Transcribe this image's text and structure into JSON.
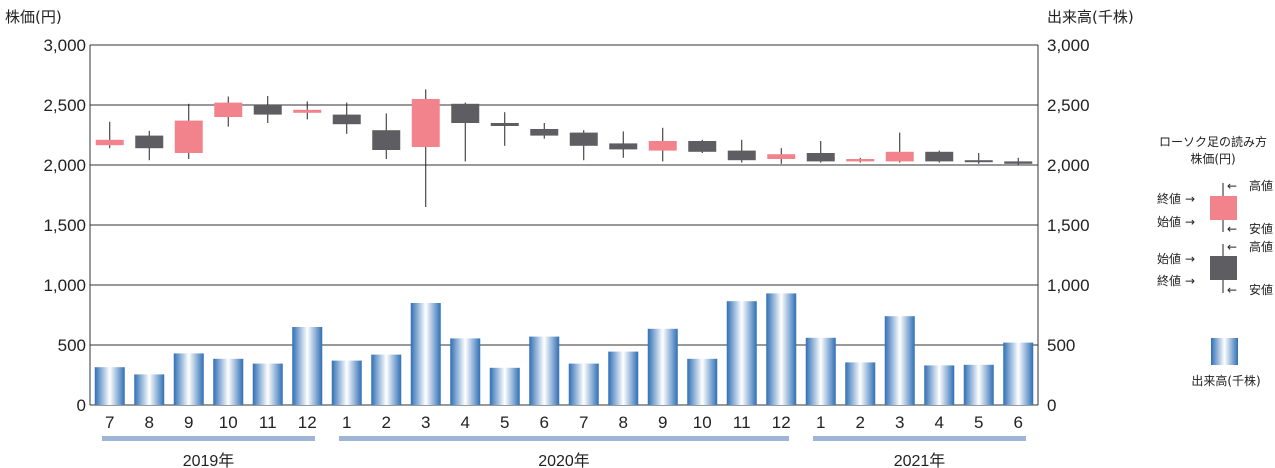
{
  "colors": {
    "up": "#f2838c",
    "down": "#5e5e62",
    "bar_edge": "#2f6fb5",
    "bar_mid": "#ffffff",
    "year_bar": "#9fb5d8",
    "grid": "#333333"
  },
  "chart_data": {
    "type": "candlestick-with-volume",
    "left_axis_title": "株価(円)",
    "right_axis_title": "出来高(千株)",
    "ylim": [
      0,
      3000
    ],
    "yticks": [
      0,
      500,
      1000,
      1500,
      2000,
      2500,
      3000
    ],
    "ytick_labels": [
      "0",
      "500",
      "1,000",
      "1,500",
      "2,000",
      "2,500",
      "3,000"
    ],
    "grid": true,
    "months": [
      "7",
      "8",
      "9",
      "10",
      "11",
      "12",
      "1",
      "2",
      "3",
      "4",
      "5",
      "6",
      "7",
      "8",
      "9",
      "10",
      "11",
      "12",
      "1",
      "2",
      "3",
      "4",
      "5",
      "6"
    ],
    "years": [
      {
        "label": "2019年",
        "start": 0,
        "end": 5
      },
      {
        "label": "2020年",
        "start": 6,
        "end": 17
      },
      {
        "label": "2021年",
        "start": 18,
        "end": 23
      }
    ],
    "candles": [
      {
        "open": 2165,
        "close": 2210,
        "high": 2360,
        "low": 2140
      },
      {
        "open": 2245,
        "close": 2140,
        "high": 2285,
        "low": 2040
      },
      {
        "open": 2100,
        "close": 2370,
        "high": 2510,
        "low": 2050
      },
      {
        "open": 2400,
        "close": 2520,
        "high": 2570,
        "low": 2320
      },
      {
        "open": 2500,
        "close": 2420,
        "high": 2575,
        "low": 2350
      },
      {
        "open": 2435,
        "close": 2460,
        "high": 2530,
        "low": 2380
      },
      {
        "open": 2420,
        "close": 2340,
        "high": 2520,
        "low": 2260
      },
      {
        "open": 2290,
        "close": 2125,
        "high": 2430,
        "low": 2050
      },
      {
        "open": 2150,
        "close": 2550,
        "high": 2630,
        "low": 1650
      },
      {
        "open": 2510,
        "close": 2350,
        "high": 2520,
        "low": 2030
      },
      {
        "open": 2350,
        "close": 2325,
        "high": 2440,
        "low": 2160
      },
      {
        "open": 2300,
        "close": 2245,
        "high": 2350,
        "low": 2220
      },
      {
        "open": 2270,
        "close": 2160,
        "high": 2290,
        "low": 2040
      },
      {
        "open": 2180,
        "close": 2130,
        "high": 2280,
        "low": 2060
      },
      {
        "open": 2120,
        "close": 2200,
        "high": 2310,
        "low": 2030
      },
      {
        "open": 2200,
        "close": 2110,
        "high": 2210,
        "low": 2100
      },
      {
        "open": 2120,
        "close": 2040,
        "high": 2210,
        "low": 2020
      },
      {
        "open": 2050,
        "close": 2090,
        "high": 2140,
        "low": 2010
      },
      {
        "open": 2100,
        "close": 2030,
        "high": 2200,
        "low": 2020
      },
      {
        "open": 2030,
        "close": 2050,
        "high": 2060,
        "low": 2020
      },
      {
        "open": 2030,
        "close": 2110,
        "high": 2270,
        "low": 2020
      },
      {
        "open": 2110,
        "close": 2030,
        "high": 2120,
        "low": 2020
      },
      {
        "open": 2040,
        "close": 2030,
        "high": 2100,
        "low": 2010
      },
      {
        "open": 2030,
        "close": 2010,
        "high": 2060,
        "low": 2000
      }
    ],
    "volume": [
      315,
      255,
      430,
      385,
      345,
      650,
      370,
      420,
      850,
      555,
      310,
      570,
      345,
      445,
      635,
      385,
      865,
      930,
      560,
      355,
      740,
      330,
      335,
      520
    ]
  },
  "legend": {
    "title": "ローソク足の読み方",
    "subtitle": "株価(円)",
    "up_labels": {
      "close": "終値",
      "open": "始値",
      "high": "高値",
      "low": "安値"
    },
    "down_labels": {
      "open": "始値",
      "close": "終値",
      "high": "高値",
      "low": "安値"
    },
    "volume_label": "出来高(千株)"
  }
}
